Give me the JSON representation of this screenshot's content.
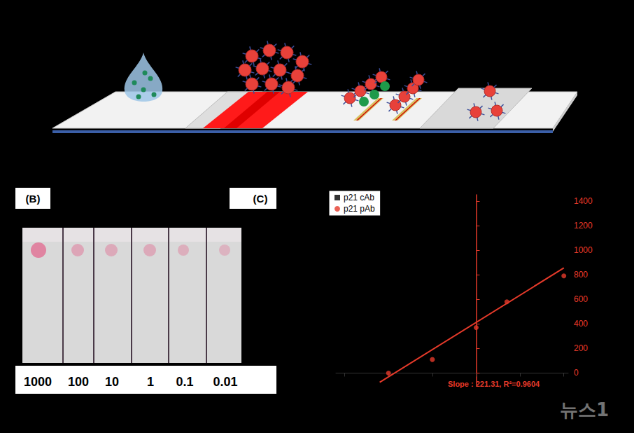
{
  "panel_b": {
    "label": "(B)",
    "concentrations": [
      1000,
      100,
      10,
      1,
      0.1,
      0.01
    ]
  },
  "panel_c": {
    "label": "(C)"
  },
  "watermark": "뉴스1",
  "chart_data": {
    "type": "scatter",
    "x": [
      -2,
      -1,
      0,
      0.7,
      2
    ],
    "series": [
      {
        "name": "p21 cAb",
        "color": "#000000",
        "marker": "square",
        "values": [
          null,
          null,
          null,
          null,
          null
        ]
      },
      {
        "name": "p21 pAb",
        "color": "#e53a2a",
        "marker": "circle",
        "values": [
          0,
          110,
          370,
          580,
          790
        ]
      }
    ],
    "fit_line": {
      "x": [
        -2.2,
        2.0
      ],
      "values": [
        -75,
        855
      ],
      "color": "#e53a2a",
      "type": "line"
    },
    "annotation": "Slope : 221.31, R²=0.9604",
    "xlim": [
      -3.2,
      2.1
    ],
    "xticks": [
      -3,
      -2,
      -1,
      0,
      1,
      2
    ],
    "ylim": [
      -100,
      1450
    ],
    "yticks": [
      0,
      200,
      400,
      600,
      800,
      1000,
      1200,
      1400
    ],
    "tick_labels": "y",
    "grid": false,
    "legend": "top-left"
  }
}
